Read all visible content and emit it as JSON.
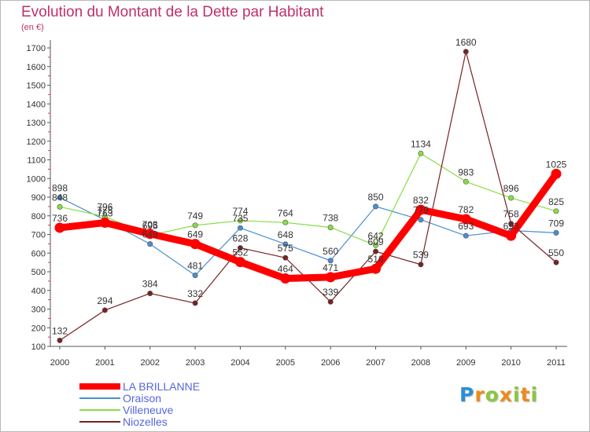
{
  "chart_data": {
    "type": "line",
    "title": "Evolution du Montant de la Dette par Habitant",
    "subtitle": "(en €)",
    "x": [
      "2000",
      "2001",
      "2002",
      "2003",
      "2004",
      "2005",
      "2006",
      "2007",
      "2008",
      "2009",
      "2010",
      "2011"
    ],
    "ylim": [
      100,
      1700
    ],
    "yticks": [
      100,
      200,
      300,
      400,
      500,
      600,
      700,
      800,
      900,
      1000,
      1100,
      1200,
      1300,
      1400,
      1500,
      1600,
      1700
    ],
    "grid": false,
    "legend_position": "bottom-left",
    "series": [
      {
        "name": "LA BRILLANNE",
        "color": "#ff0000",
        "values": [
          736,
          763,
          703,
          649,
          552,
          464,
          471,
          516,
          832,
          782,
          693,
          1025
        ]
      },
      {
        "name": "Oraison",
        "color": "#4a8fd0",
        "values": [
          898,
          778,
          649,
          481,
          735,
          648,
          560,
          850,
          779,
          693,
          721,
          709
        ]
      },
      {
        "name": "Villeneuve",
        "color": "#88dd44",
        "values": [
          848,
          796,
          695,
          749,
          774,
          764,
          738,
          642,
          1134,
          983,
          896,
          825
        ]
      },
      {
        "name": "Niozelles",
        "color": "#772222",
        "values": [
          132,
          294,
          384,
          332,
          628,
          575,
          339,
          609,
          539,
          1680,
          758,
          550
        ]
      }
    ],
    "data_labels": [
      {
        "label": "898",
        "x": "2000",
        "y": 898
      },
      {
        "label": "848",
        "x": "2000",
        "y": 848
      },
      {
        "label": "736",
        "x": "2000",
        "y": 736
      },
      {
        "label": "132",
        "x": "2000",
        "y": 132
      },
      {
        "label": "796",
        "x": "2001",
        "y": 796
      },
      {
        "label": "778",
        "x": "2001",
        "y": 778
      },
      {
        "label": "763",
        "x": "2001",
        "y": 763
      },
      {
        "label": "294",
        "x": "2001",
        "y": 294
      },
      {
        "label": "703",
        "x": "2002",
        "y": 703
      },
      {
        "label": "695",
        "x": "2002",
        "y": 695
      },
      {
        "label": "649",
        "x": "2002",
        "y": 649
      },
      {
        "label": "384",
        "x": "2002",
        "y": 384
      },
      {
        "label": "749",
        "x": "2003",
        "y": 749
      },
      {
        "label": "649",
        "x": "2003",
        "y": 649
      },
      {
        "label": "481",
        "x": "2003",
        "y": 481
      },
      {
        "label": "332",
        "x": "2003",
        "y": 332
      },
      {
        "label": "774",
        "x": "2004",
        "y": 774
      },
      {
        "label": "735",
        "x": "2004",
        "y": 735
      },
      {
        "label": "628",
        "x": "2004",
        "y": 628
      },
      {
        "label": "552",
        "x": "2004",
        "y": 552
      },
      {
        "label": "764",
        "x": "2005",
        "y": 764
      },
      {
        "label": "648",
        "x": "2005",
        "y": 648
      },
      {
        "label": "575",
        "x": "2005",
        "y": 575
      },
      {
        "label": "464",
        "x": "2005",
        "y": 464
      },
      {
        "label": "738",
        "x": "2006",
        "y": 738
      },
      {
        "label": "560",
        "x": "2006",
        "y": 560
      },
      {
        "label": "471",
        "x": "2006",
        "y": 471
      },
      {
        "label": "339",
        "x": "2006",
        "y": 339
      },
      {
        "label": "850",
        "x": "2007",
        "y": 850
      },
      {
        "label": "642",
        "x": "2007",
        "y": 642
      },
      {
        "label": "609",
        "x": "2007",
        "y": 609
      },
      {
        "label": "516",
        "x": "2007",
        "y": 516
      },
      {
        "label": "1134",
        "x": "2008",
        "y": 1134
      },
      {
        "label": "832",
        "x": "2008",
        "y": 832
      },
      {
        "label": "779",
        "x": "2008",
        "y": 779
      },
      {
        "label": "539",
        "x": "2008",
        "y": 539
      },
      {
        "label": "1680",
        "x": "2009",
        "y": 1680
      },
      {
        "label": "983",
        "x": "2009",
        "y": 983
      },
      {
        "label": "782",
        "x": "2009",
        "y": 782
      },
      {
        "label": "693",
        "x": "2009",
        "y": 693
      },
      {
        "label": "896",
        "x": "2010",
        "y": 896
      },
      {
        "label": "758",
        "x": "2010",
        "y": 758
      },
      {
        "label": "693",
        "x": "2010",
        "y": 693
      },
      {
        "label": "1025",
        "x": "2011",
        "y": 1025
      },
      {
        "label": "825",
        "x": "2011",
        "y": 825
      },
      {
        "label": "709",
        "x": "2011",
        "y": 709
      },
      {
        "label": "550",
        "x": "2011",
        "y": 550
      }
    ]
  },
  "logo": {
    "letters": [
      {
        "ch": "P",
        "color": "#2a8fd6"
      },
      {
        "ch": "r",
        "color": "#f08a1a"
      },
      {
        "ch": "o",
        "color": "#8cc63f"
      },
      {
        "ch": "x",
        "color": "#f08a1a"
      },
      {
        "ch": "i",
        "color": "#8cc63f"
      },
      {
        "ch": "t",
        "color": "#f08a1a"
      },
      {
        "ch": "i",
        "color": "#8cc63f"
      }
    ]
  },
  "colors": {
    "title": "#c0306a",
    "axis": "#555555",
    "legend_text": "#5566dd"
  }
}
